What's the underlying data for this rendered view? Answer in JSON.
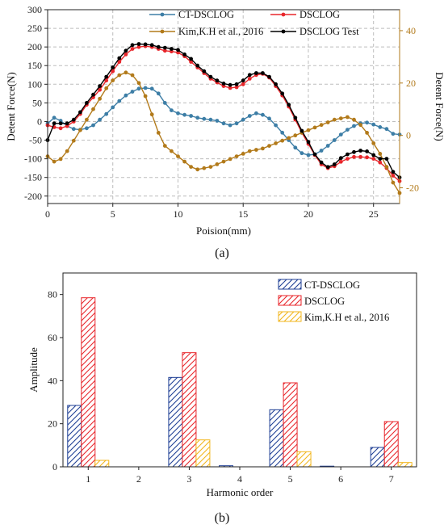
{
  "colors": {
    "ct": "#3d7ea6",
    "ds": "#e8262b",
    "kim": "#b27a1a",
    "test": "#000000",
    "bar_ct": "#1f3f95",
    "bar_ds": "#e8262b",
    "bar_kim": "#f2b61d"
  },
  "chart_data": [
    {
      "type": "line",
      "subplot_label": "(a)",
      "xlabel": "Poision(mm)",
      "ylabel": "Detent Force(N)",
      "ylabel_right": "Detent Force(N)",
      "xlim": [
        0,
        27
      ],
      "ylim": [
        -220,
        300
      ],
      "ylim_right": [
        -26,
        48
      ],
      "xticks": [
        "0",
        "5",
        "10",
        "15",
        "20",
        "25"
      ],
      "xtick_values": [
        0,
        5,
        10,
        15,
        20,
        25
      ],
      "yticks": [
        "300",
        "250",
        "200",
        "150",
        "100",
        "50",
        "0",
        "-50",
        "-100",
        "-150",
        "-200"
      ],
      "ytick_values": [
        300,
        250,
        200,
        150,
        100,
        50,
        0,
        -50,
        -100,
        -150,
        -200
      ],
      "yticks_right": [
        "40",
        "20",
        "0",
        "-20"
      ],
      "ytick_values_right": [
        40,
        20,
        0,
        -20
      ],
      "grid": true,
      "legend": "top",
      "series": [
        {
          "name": "CT-DSCLOG",
          "axis": "left",
          "color_key": "ct",
          "x": [
            0,
            0.5,
            1,
            1.5,
            2,
            2.5,
            3,
            3.5,
            4,
            4.5,
            5,
            5.5,
            6,
            6.5,
            7,
            7.5,
            8,
            8.5,
            9,
            9.5,
            10,
            10.5,
            11,
            11.5,
            12,
            12.5,
            13,
            13.5,
            14,
            14.5,
            15,
            15.5,
            16,
            16.5,
            17,
            17.5,
            18,
            18.5,
            19,
            19.5,
            20,
            20.5,
            21,
            21.5,
            22,
            22.5,
            23,
            23.5,
            24,
            24.5,
            25,
            25.5,
            26,
            26.5,
            27
          ],
          "y": [
            -5,
            10,
            2,
            -12,
            -20,
            -22,
            -18,
            -10,
            5,
            20,
            38,
            55,
            70,
            80,
            88,
            90,
            88,
            75,
            50,
            30,
            22,
            18,
            15,
            10,
            7,
            5,
            2,
            -5,
            -10,
            -5,
            5,
            15,
            22,
            18,
            8,
            -10,
            -30,
            -50,
            -70,
            -85,
            -90,
            -88,
            -78,
            -65,
            -50,
            -35,
            -22,
            -12,
            -5,
            -3,
            -8,
            -15,
            -20,
            -33,
            -35
          ]
        },
        {
          "name": "DSCLOG",
          "axis": "left",
          "color_key": "ds",
          "x": [
            0,
            0.5,
            1,
            1.5,
            2,
            2.5,
            3,
            3.5,
            4,
            4.5,
            5,
            5.5,
            6,
            6.5,
            7,
            7.5,
            8,
            8.5,
            9,
            9.5,
            10,
            10.5,
            11,
            11.5,
            12,
            12.5,
            13,
            13.5,
            14,
            14.5,
            15,
            15.5,
            16,
            16.5,
            17,
            17.5,
            18,
            18.5,
            19,
            19.5,
            20,
            20.5,
            21,
            21.5,
            22,
            22.5,
            23,
            23.5,
            24,
            24.5,
            25,
            25.5,
            26,
            26.5,
            27
          ],
          "y": [
            -10,
            -15,
            -18,
            -12,
            0,
            20,
            45,
            65,
            85,
            110,
            135,
            160,
            180,
            195,
            200,
            202,
            200,
            195,
            190,
            188,
            185,
            175,
            160,
            145,
            130,
            115,
            105,
            95,
            90,
            92,
            100,
            115,
            125,
            128,
            118,
            95,
            70,
            40,
            5,
            -30,
            -60,
            -90,
            -115,
            -125,
            -120,
            -108,
            -100,
            -95,
            -95,
            -96,
            -100,
            -110,
            -125,
            -145,
            -160
          ]
        },
        {
          "name": "Kim,K.H et al., 2016",
          "axis": "right",
          "color_key": "kim",
          "x": [
            0,
            0.5,
            1,
            1.5,
            2,
            2.5,
            3,
            3.5,
            4,
            4.5,
            5,
            5.5,
            6,
            6.5,
            7,
            7.5,
            8,
            8.5,
            9,
            9.5,
            10,
            10.5,
            11,
            11.5,
            12,
            12.5,
            13,
            13.5,
            14,
            14.5,
            15,
            15.5,
            16,
            16.5,
            17,
            17.5,
            18,
            18.5,
            19,
            19.5,
            20,
            20.5,
            21,
            21.5,
            22,
            22.5,
            23,
            23.5,
            24,
            24.5,
            25,
            25.5,
            26,
            26.5,
            27
          ],
          "y": [
            -8,
            -10,
            -9,
            -6,
            -2,
            2,
            6,
            10,
            14,
            18,
            21,
            23,
            24,
            23,
            20,
            15,
            8,
            1,
            -4,
            -6,
            -8,
            -10,
            -12,
            -13,
            -12.5,
            -12,
            -11,
            -10,
            -9,
            -8,
            -7,
            -6,
            -5.5,
            -5,
            -4,
            -3,
            -2,
            -1,
            0,
            1,
            2,
            3,
            4,
            5,
            6,
            6.5,
            7,
            6,
            4,
            1,
            -3,
            -7,
            -12,
            -18,
            -22
          ]
        },
        {
          "name": "DSCLOG Test",
          "axis": "left",
          "color_key": "test",
          "x": [
            0,
            0.5,
            1,
            1.5,
            2,
            2.5,
            3,
            3.5,
            4,
            4.5,
            5,
            5.5,
            6,
            6.5,
            7,
            7.5,
            8,
            8.5,
            9,
            9.5,
            10,
            10.5,
            11,
            11.5,
            12,
            12.5,
            13,
            13.5,
            14,
            14.5,
            15,
            15.5,
            16,
            16.5,
            17,
            17.5,
            18,
            18.5,
            19,
            19.5,
            20,
            20.5,
            21,
            21.5,
            22,
            22.5,
            23,
            23.5,
            24,
            24.5,
            25,
            25.5,
            26,
            26.5,
            27
          ],
          "y": [
            -50,
            -5,
            -5,
            -5,
            5,
            25,
            50,
            72,
            95,
            120,
            145,
            170,
            190,
            205,
            208,
            207,
            205,
            200,
            198,
            195,
            192,
            180,
            168,
            150,
            135,
            120,
            110,
            102,
            98,
            100,
            110,
            125,
            130,
            130,
            120,
            100,
            75,
            45,
            10,
            -25,
            -55,
            -88,
            -110,
            -122,
            -115,
            -98,
            -88,
            -82,
            -78,
            -80,
            -90,
            -100,
            -100,
            -135,
            -150
          ]
        }
      ]
    },
    {
      "type": "bar",
      "subplot_label": "(b)",
      "xlabel": "Harmonic order",
      "ylabel": "Amplitude",
      "categories": [
        "1",
        "2",
        "3",
        "4",
        "5",
        "6",
        "7"
      ],
      "ylim": [
        0,
        90
      ],
      "yticks": [
        "0",
        "20",
        "40",
        "60",
        "80"
      ],
      "ytick_values": [
        0,
        20,
        40,
        60,
        80
      ],
      "grid": false,
      "legend": "top-right",
      "series": [
        {
          "name": "CT-DSCLOG",
          "color_key": "bar_ct",
          "values": [
            28.5,
            0,
            41.5,
            0.5,
            26.5,
            0.3,
            9
          ]
        },
        {
          "name": "DSCLOG",
          "color_key": "bar_ds",
          "values": [
            78.5,
            0,
            53,
            0,
            39,
            0,
            21
          ]
        },
        {
          "name": "Kim,K.H et al., 2016",
          "color_key": "bar_kim",
          "values": [
            3,
            0,
            12.5,
            0,
            7,
            0,
            2
          ]
        }
      ]
    }
  ]
}
